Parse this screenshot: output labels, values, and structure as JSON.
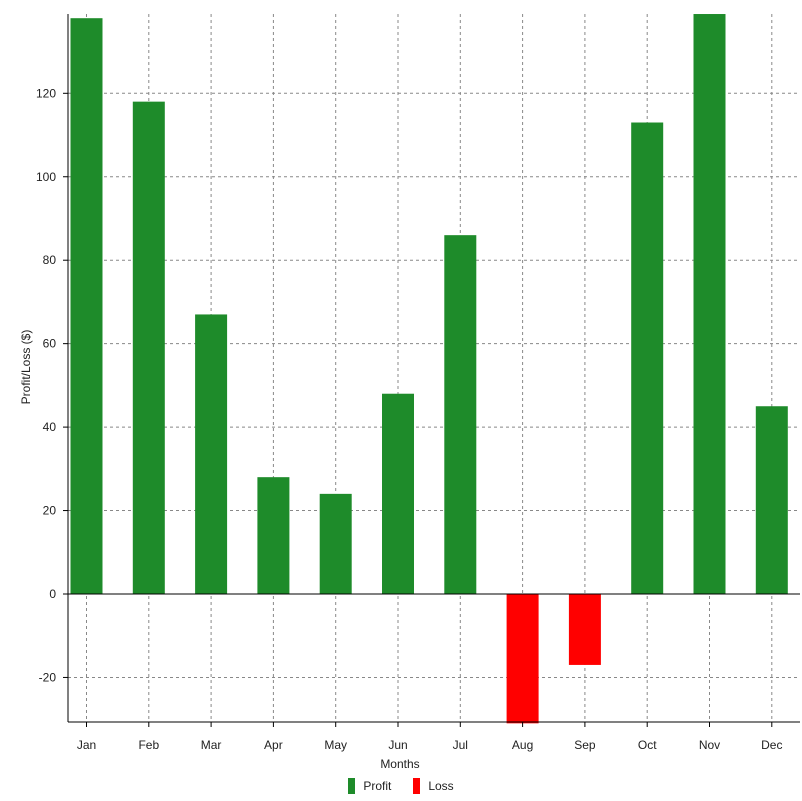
{
  "chart_data": {
    "type": "bar",
    "categories": [
      "Jan",
      "Feb",
      "Mar",
      "Apr",
      "May",
      "Jun",
      "Jul",
      "Aug",
      "Sep",
      "Oct",
      "Nov",
      "Dec"
    ],
    "values": [
      138,
      118,
      67,
      28,
      24,
      48,
      86,
      -31,
      -17,
      113,
      139,
      45
    ],
    "xlabel": "Months",
    "ylabel": "Profit/Loss ($)",
    "yticks": [
      -20,
      0,
      20,
      40,
      60,
      80,
      100,
      120
    ],
    "ylim": [
      -31,
      139
    ],
    "grid": true,
    "legend_position": "bottom-center",
    "legend": [
      {
        "name": "Profit",
        "color": "#1e8b2a"
      },
      {
        "name": "Loss",
        "color": "#ff0000"
      }
    ],
    "colors": {
      "profit": "#1e8b2a",
      "loss": "#ff0000",
      "grid": "#888888",
      "axis": "#000000"
    }
  }
}
